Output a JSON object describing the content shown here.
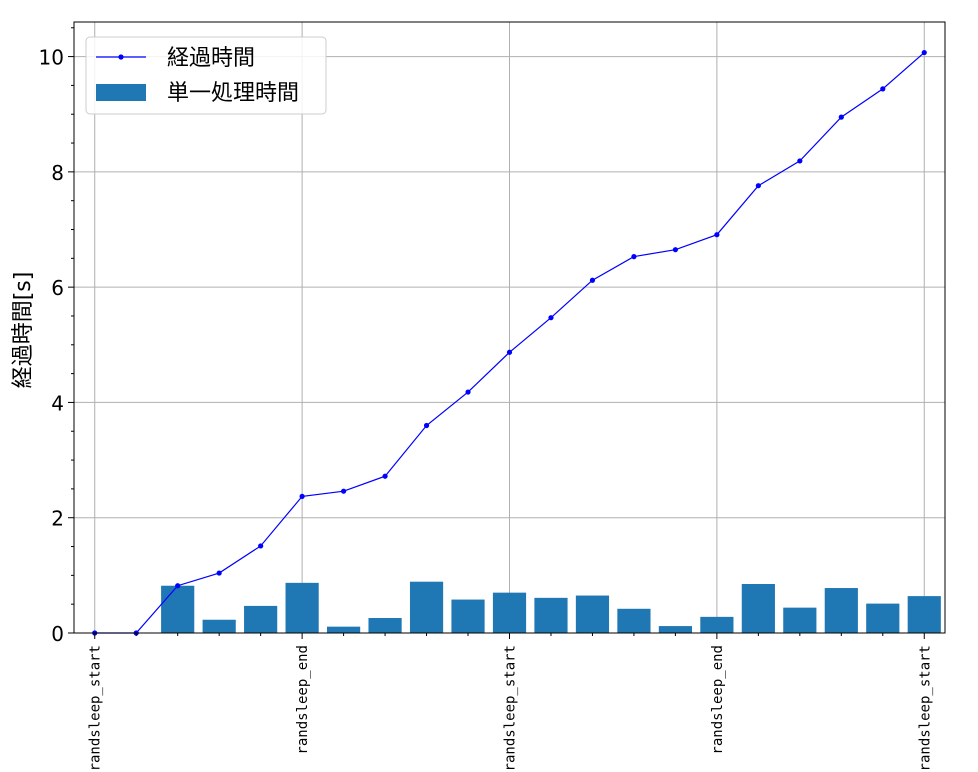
{
  "chart_data": {
    "type": "bar+line",
    "title": "",
    "xlabel": "",
    "ylabel": "経過時間[s]",
    "ylim": [
      0,
      10.6
    ],
    "xlim": [
      -0.5,
      20.5
    ],
    "yticks": [
      0,
      2,
      4,
      6,
      8,
      10
    ],
    "yticks_minor_step": 0.5,
    "xticks": [
      {
        "pos": 0,
        "label": "randsleep_start"
      },
      {
        "pos": 5,
        "label": "randsleep_end"
      },
      {
        "pos": 10,
        "label": "randsleep_start"
      },
      {
        "pos": 15,
        "label": "randsleep_end"
      },
      {
        "pos": 20,
        "label": "randsleep_start"
      }
    ],
    "grid": true,
    "legend_position": "upper left",
    "series": [
      {
        "name": "経過時間",
        "kind": "line",
        "color": "#0000ff",
        "marker": "dot",
        "x": [
          0,
          1,
          2,
          3,
          4,
          5,
          6,
          7,
          8,
          9,
          10,
          11,
          12,
          13,
          14,
          15,
          16,
          17,
          18,
          19,
          20
        ],
        "values": [
          0.0,
          0.0,
          0.82,
          1.04,
          1.51,
          2.37,
          2.46,
          2.72,
          3.6,
          4.18,
          4.87,
          5.47,
          6.12,
          6.53,
          6.65,
          6.91,
          7.76,
          8.19,
          8.95,
          9.44,
          10.07
        ]
      },
      {
        "name": "単一処理時間",
        "kind": "bar",
        "color": "#1f77b4",
        "x": [
          2,
          3,
          4,
          5,
          6,
          7,
          8,
          9,
          10,
          11,
          12,
          13,
          14,
          15,
          16,
          17,
          18,
          19,
          20
        ],
        "values": [
          0.82,
          0.23,
          0.47,
          0.87,
          0.11,
          0.26,
          0.89,
          0.58,
          0.7,
          0.61,
          0.65,
          0.42,
          0.12,
          0.28,
          0.85,
          0.44,
          0.78,
          0.51,
          0.64
        ]
      }
    ]
  }
}
